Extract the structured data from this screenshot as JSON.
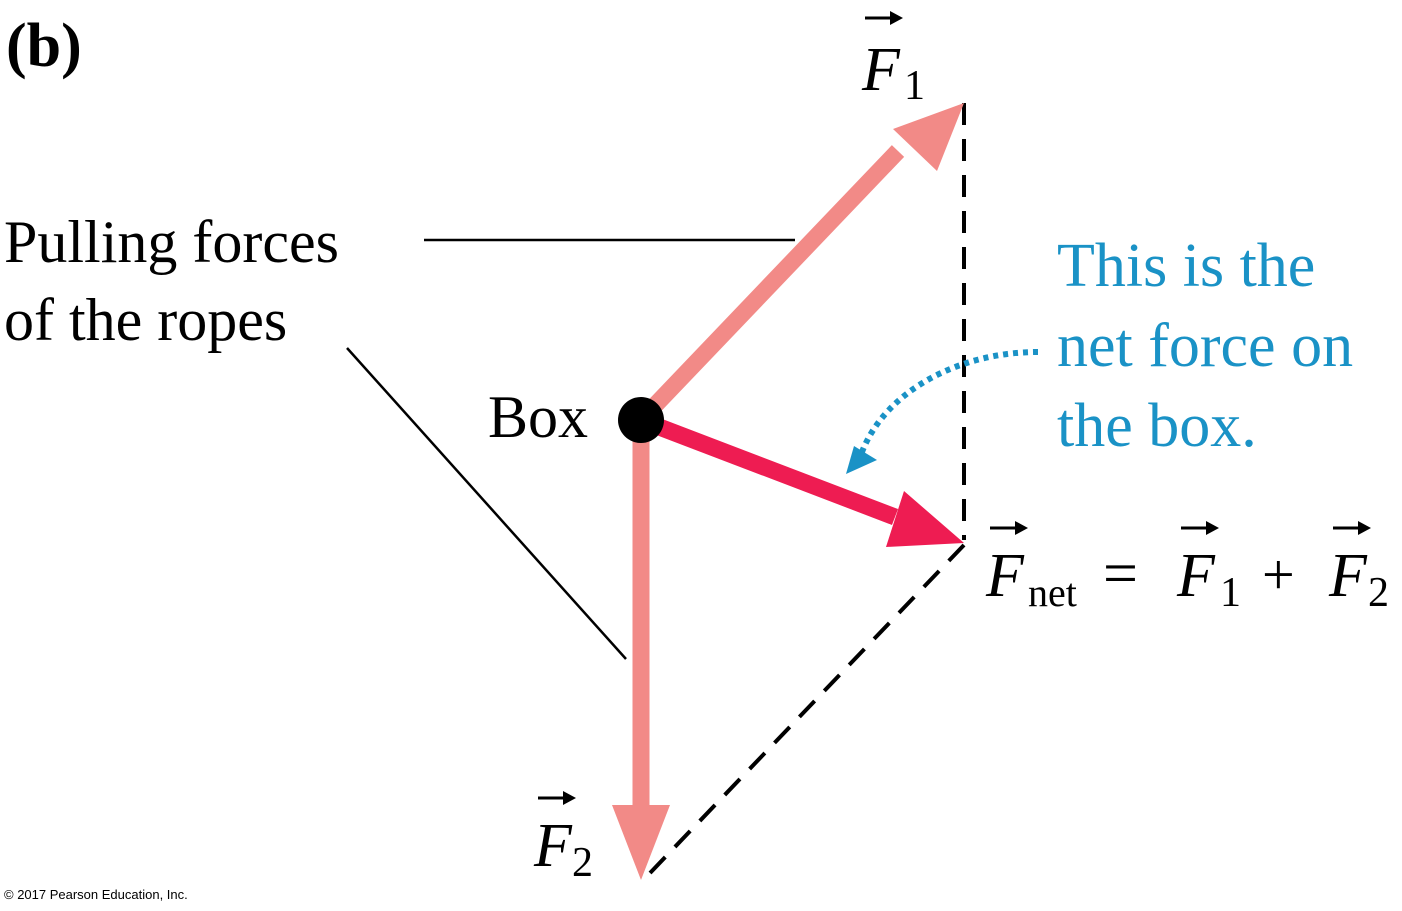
{
  "panel_label": "(b)",
  "callout_ropes": {
    "line1": "Pulling forces",
    "line2": "of the ropes"
  },
  "box_label": "Box",
  "callout_net": {
    "line1": "This is the",
    "line2": "net force on",
    "line3": "the box."
  },
  "vectors": {
    "f1": {
      "symbol": "F",
      "subscript": "1"
    },
    "f2": {
      "symbol": "F",
      "subscript": "2"
    },
    "fnet": {
      "symbol": "F",
      "subscript": "net"
    }
  },
  "equation": {
    "lhs_symbol": "F",
    "lhs_subscript": "net",
    "equals": "=",
    "term1_symbol": "F",
    "term1_subscript": "1",
    "plus": "+",
    "term2_symbol": "F",
    "term2_subscript": "2"
  },
  "copyright": "© 2017 Pearson Education, Inc.",
  "colors": {
    "component_arrow": "#f28a87",
    "net_arrow": "#ee1c52",
    "callout_text": "#1a92c6",
    "callout_dots": "#1a92c6",
    "box_dot": "#000000",
    "dashed_lines": "#000000",
    "leader_lines": "#000000"
  }
}
